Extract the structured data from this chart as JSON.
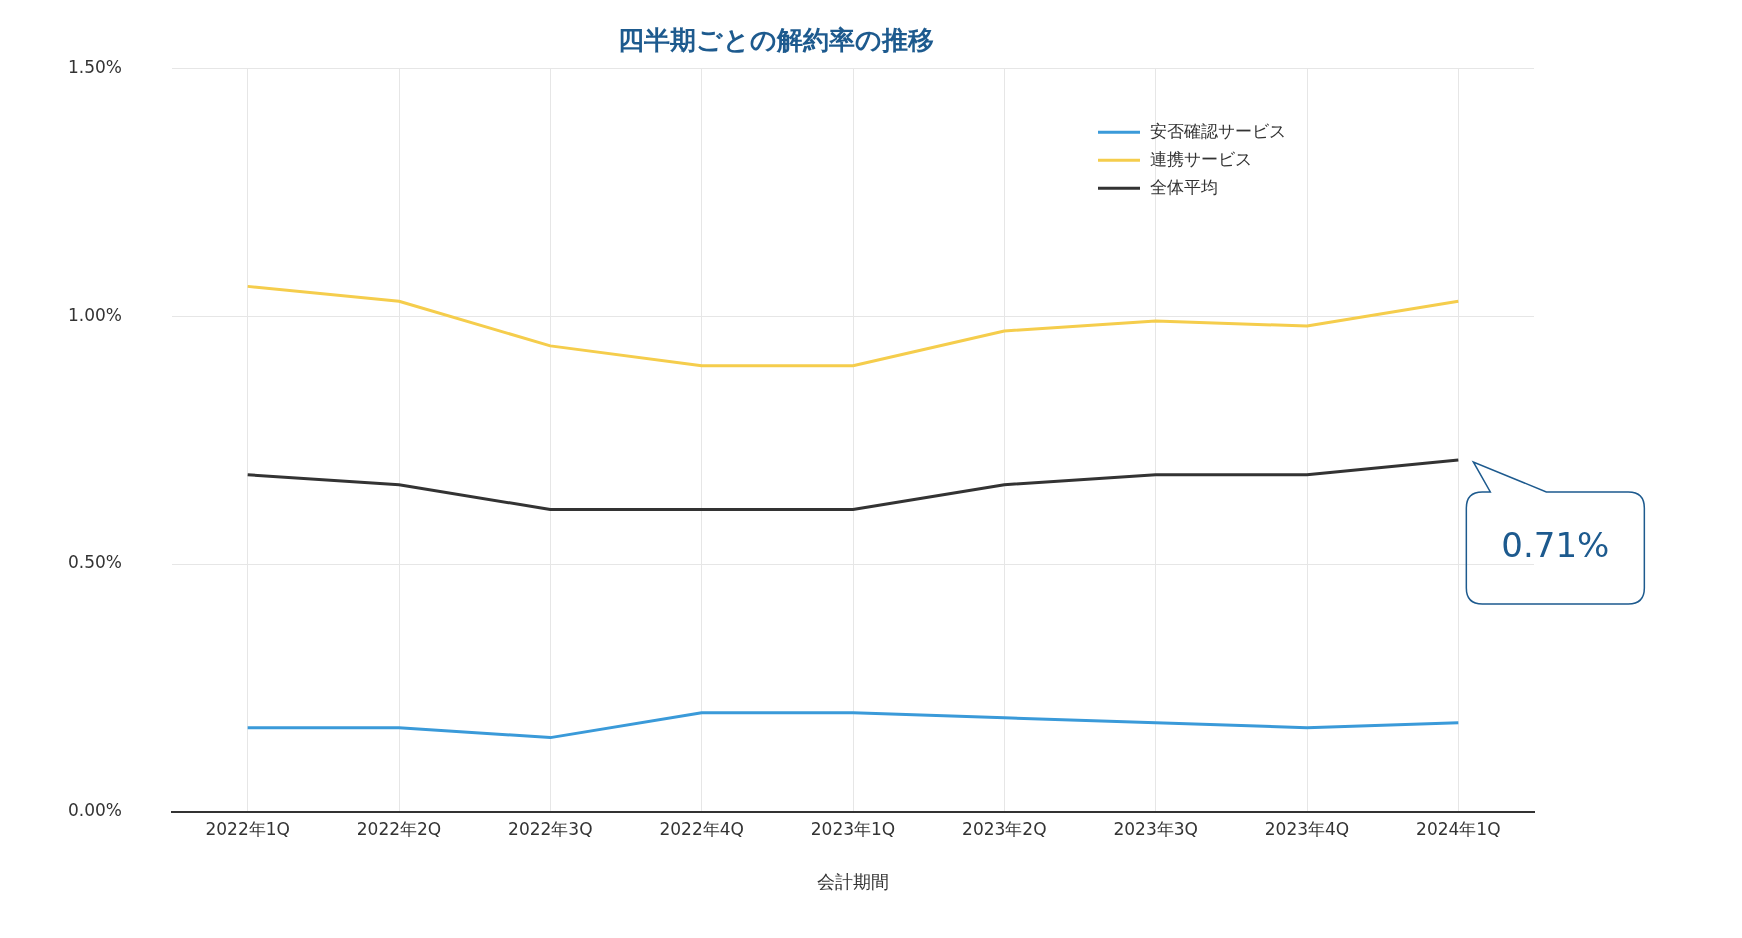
{
  "chart_data": {
    "type": "line",
    "title": "四半期ごとの解約率の推移",
    "xlabel": "会計期間",
    "categories": [
      "2022年1Q",
      "2022年2Q",
      "2022年3Q",
      "2022年4Q",
      "2023年1Q",
      "2023年2Q",
      "2023年3Q",
      "2023年4Q",
      "2024年1Q"
    ],
    "series": [
      {
        "name": "安否確認サービス",
        "color": "#3a9ad9",
        "values": [
          0.17,
          0.17,
          0.15,
          0.2,
          0.2,
          0.19,
          0.18,
          0.17,
          0.18
        ]
      },
      {
        "name": "連携サービス",
        "color": "#f5cd4c",
        "values": [
          1.06,
          1.03,
          0.94,
          0.9,
          0.9,
          0.97,
          0.99,
          0.98,
          1.03
        ]
      },
      {
        "name": "全体平均",
        "color": "#333333",
        "values": [
          0.68,
          0.66,
          0.61,
          0.61,
          0.61,
          0.66,
          0.68,
          0.68,
          0.71
        ]
      }
    ],
    "ylim": [
      0,
      1.5
    ],
    "yticks": [
      {
        "value": 0,
        "label": "0.00%"
      },
      {
        "value": 0.5,
        "label": "0.50%"
      },
      {
        "value": 1,
        "label": "1.00%"
      },
      {
        "value": 1.5,
        "label": "1.50%"
      }
    ],
    "annotations": [
      {
        "text": "0.71%",
        "x": "2024年1Q",
        "y": 0.71
      }
    ],
    "grid": true,
    "legend": "top right",
    "marker": "none",
    "line_style": "solid"
  }
}
